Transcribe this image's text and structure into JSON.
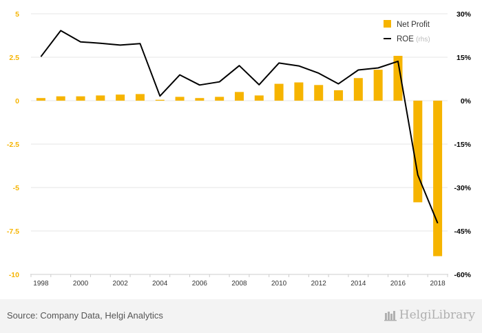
{
  "chart_data": {
    "type": "bar",
    "categories": [
      1998,
      1999,
      2000,
      2001,
      2002,
      2003,
      2004,
      2005,
      2006,
      2007,
      2008,
      2009,
      2010,
      2011,
      2012,
      2013,
      2014,
      2015,
      2016,
      2017,
      2018
    ],
    "x_tick_labels": [
      "1998",
      "2000",
      "2002",
      "2004",
      "2006",
      "2008",
      "2010",
      "2012",
      "2014",
      "2016",
      "2018"
    ],
    "series": [
      {
        "name": "Net Profit",
        "type": "bar",
        "axis": "left",
        "color": "#f6b400",
        "values": [
          0.15,
          0.25,
          0.25,
          0.3,
          0.35,
          0.38,
          0.05,
          0.22,
          0.15,
          0.22,
          0.5,
          0.3,
          0.97,
          1.05,
          0.9,
          0.6,
          1.3,
          1.78,
          2.58,
          -5.85,
          -8.95
        ]
      },
      {
        "name": "ROE",
        "type": "line",
        "axis": "right",
        "color": "#000000",
        "values": [
          15.2,
          24.2,
          20.3,
          19.8,
          19.2,
          19.7,
          1.6,
          8.9,
          5.4,
          6.5,
          12.1,
          5.5,
          13.0,
          12.0,
          9.5,
          5.8,
          10.6,
          11.3,
          13.6,
          -25.7,
          -42.3
        ]
      }
    ],
    "legend": [
      {
        "label": "Net Profit",
        "sub": "",
        "swatch": "bar"
      },
      {
        "label": "ROE",
        "sub": "(rhs)",
        "swatch": "line"
      }
    ],
    "y_left": {
      "ylim": [
        -10,
        5
      ],
      "ticks": [
        "5",
        "2.5",
        "0",
        "-2.5",
        "-5",
        "-7.5",
        "-10"
      ],
      "color": "#f6b400"
    },
    "y_right": {
      "ylim": [
        -60,
        30
      ],
      "ticks": [
        "30%",
        "15%",
        "0%",
        "-15%",
        "-30%",
        "-45%",
        "-60%"
      ],
      "color": "#000000"
    },
    "grid": true,
    "legend_position": "top-right"
  },
  "footer": {
    "source": "Source: Company Data, Helgi Analytics",
    "brand": "HelgiLibrary"
  }
}
